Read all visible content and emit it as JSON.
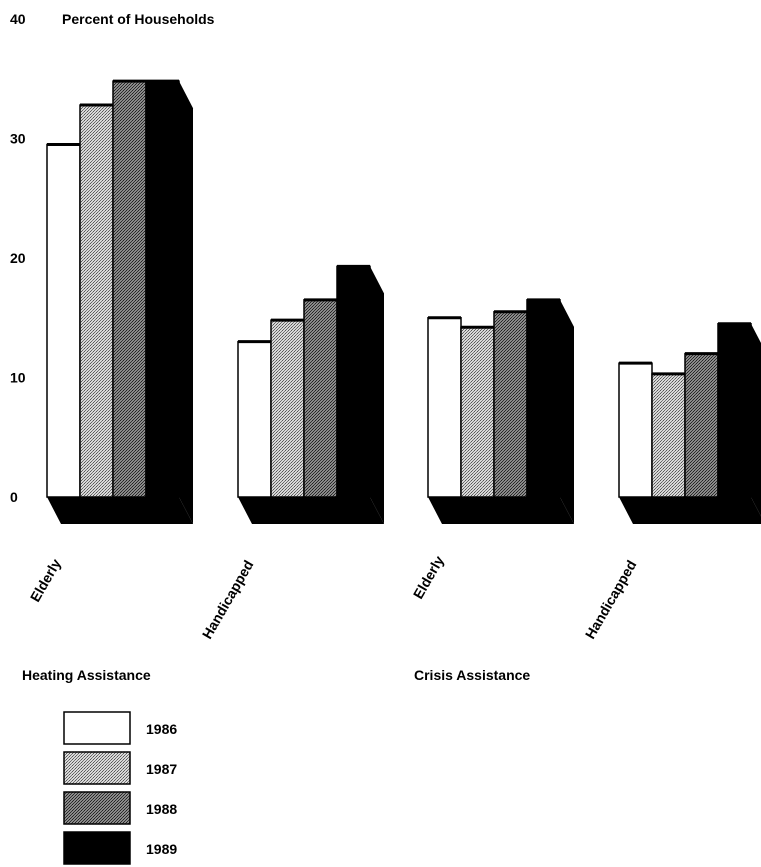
{
  "chart_data": {
    "type": "bar",
    "ylabel": "Percent of Households",
    "ylim": [
      0,
      40
    ],
    "y_ticks": [
      "0",
      "10",
      "20",
      "30",
      "40"
    ],
    "groups": [
      {
        "label": "Heating Assistance",
        "categories": [
          "Elderly",
          "Handicapped"
        ]
      },
      {
        "label": "Crisis Assistance",
        "categories": [
          "Elderly",
          "Handicapped"
        ]
      }
    ],
    "categories": [
      "Elderly",
      "Handicapped",
      "Elderly",
      "Handicapped"
    ],
    "series": [
      {
        "name": "1986",
        "color": "#ffffff",
        "values": [
          29.5,
          13.0,
          15.0,
          11.2
        ]
      },
      {
        "name": "1987",
        "color": "#bdbdbd",
        "values": [
          32.8,
          14.8,
          14.2,
          10.3
        ]
      },
      {
        "name": "1988",
        "color": "#6f6f6f",
        "values": [
          34.8,
          16.5,
          15.5,
          12.0
        ]
      },
      {
        "name": "1989",
        "color": "#000000",
        "values": [
          34.8,
          19.3,
          16.5,
          14.5
        ]
      }
    ],
    "legend_position": "bottom-left",
    "grid": false
  }
}
